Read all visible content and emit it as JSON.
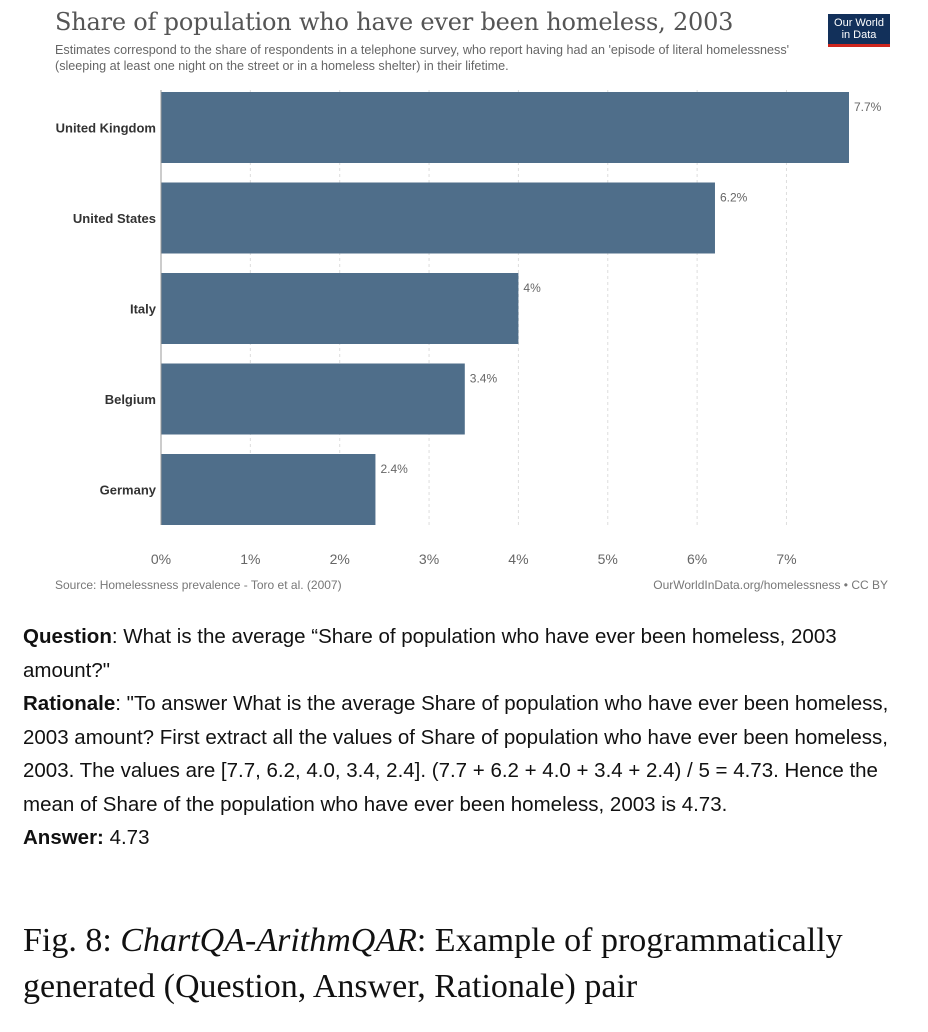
{
  "chart": {
    "title": "Share of population who have ever been homeless, 2003",
    "subtitle": "Estimates correspond to the share of respondents in a telephone survey, who report having had an 'episode of literal homelessness' (sleeping at least one night on the street or in a homeless shelter) in their lifetime.",
    "logo_line1": "Our World",
    "logo_line2": "in Data",
    "source": "Source: Homelessness prevalence - Toro et al. (2007)",
    "license": "OurWorldInData.org/homelessness • CC BY"
  },
  "chart_data": {
    "type": "bar",
    "orientation": "horizontal",
    "title": "Share of population who have ever been homeless, 2003",
    "categories": [
      "United Kingdom",
      "United States",
      "Italy",
      "Belgium",
      "Germany"
    ],
    "values": [
      7.7,
      6.2,
      4.0,
      3.4,
      2.4
    ],
    "value_labels": [
      "7.7%",
      "6.2%",
      "4%",
      "3.4%",
      "2.4%"
    ],
    "x_ticks": [
      0,
      1,
      2,
      3,
      4,
      5,
      6,
      7
    ],
    "x_tick_labels": [
      "0%",
      "1%",
      "2%",
      "3%",
      "4%",
      "5%",
      "6%",
      "7%"
    ],
    "xlim": [
      0,
      7.7
    ],
    "grid": "vertical dashed",
    "legend": "none",
    "bar_color": "#4f6e8a"
  },
  "qa": {
    "question_label": "Question",
    "question_text": ": What is the average “Share of population who have ever been homeless, 2003 amount?\"",
    "rationale_label": "Rationale",
    "rationale_text": ": \"To answer What is the average Share of population who have ever been homeless, 2003 amount? First extract all the values of Share of population who have ever been homeless, 2003. The values are [7.7, 6.2, 4.0, 3.4, 2.4]. (7.7 + 6.2 + 4.0 + 3.4 + 2.4) / 5 =  4.73. Hence the mean of Share of the population who have ever been homeless, 2003 is 4.73.",
    "answer_label": "Answer:",
    "answer_text": " 4.73"
  },
  "caption": {
    "prefix": "Fig. 8: ",
    "name": "ChartQA-ArithmQAR",
    "rest": ": Example of programmatically generated (Question, Answer, Rationale) pair"
  }
}
